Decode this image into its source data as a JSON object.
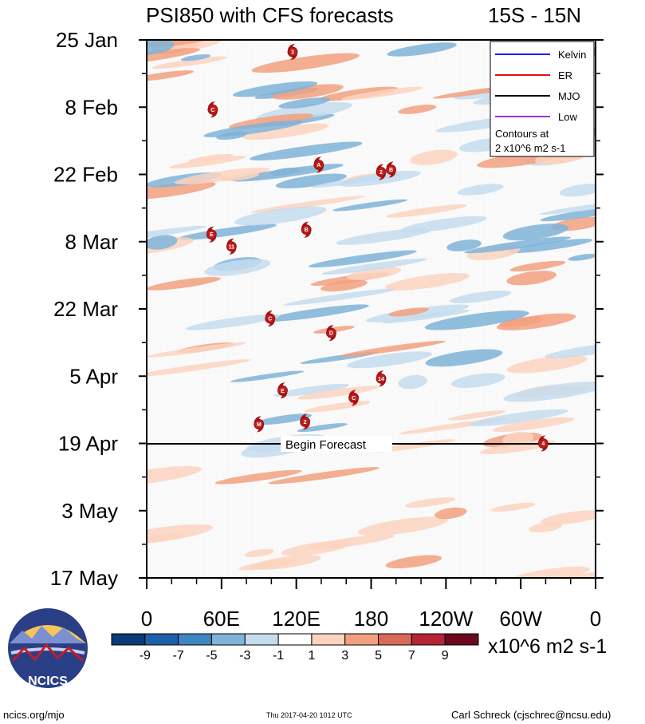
{
  "header": {
    "title": "PSI850 with CFS forecasts",
    "region": "15S - 15N"
  },
  "legend": {
    "items": [
      {
        "label": "Kelvin",
        "color": "#1a1aff"
      },
      {
        "label": "ER",
        "color": "#e01010"
      },
      {
        "label": "MJO",
        "color": "#000000"
      },
      {
        "label": "Low",
        "color": "#9a33cc"
      }
    ],
    "contours_line1": "Contours at",
    "contours_line2": "2 x10^6 m2 s-1"
  },
  "forecast_label": "Begin Forecast",
  "colorbar": {
    "colors": [
      "#0b3a78",
      "#1f5fa8",
      "#3d86c2",
      "#7fb3d8",
      "#c4dcee",
      "#ffffff",
      "#fcd3bf",
      "#f2a07f",
      "#d86a5a",
      "#b42535",
      "#6b0a1e"
    ],
    "labels": [
      "-9",
      "-7",
      "-5",
      "-3",
      "-1",
      "1",
      "3",
      "5",
      "7",
      "9"
    ],
    "units": "x10^6 m2 s-1"
  },
  "logo": {
    "text": "NCICS"
  },
  "footer": {
    "url": "ncics.org/mjo",
    "timestamp": "Thu 2017-04-20 1012 UTC",
    "author": "Carl Schreck (cjschrec@ncsu.edu)"
  },
  "chart_data": {
    "type": "heatmap",
    "title": "PSI850 with CFS forecasts",
    "subtitle": "15S - 15N",
    "x_ticks": [
      "0",
      "60E",
      "120E",
      "180",
      "120W",
      "60W",
      "0"
    ],
    "x_range_deg": [
      0,
      360
    ],
    "y_ticks": [
      "25 Jan",
      "8 Feb",
      "22 Feb",
      "8 Mar",
      "22 Mar",
      "5 Apr",
      "19 Apr",
      "3 May",
      "17 May"
    ],
    "y_range_days_from_25Jan": [
      0,
      112
    ],
    "forecast_start": "19 Apr",
    "contour_levels": [
      -9,
      -7,
      -5,
      -3,
      -1,
      1,
      3,
      5,
      7,
      9
    ],
    "storms": [
      {
        "label": "3",
        "lon": 117,
        "day": 2.5
      },
      {
        "label": "C",
        "lon": 53,
        "day": 14.5
      },
      {
        "label": "A",
        "lon": 138,
        "day": 26
      },
      {
        "label": "2",
        "lon": 188,
        "day": 27.5
      },
      {
        "label": "B",
        "lon": 196,
        "day": 27
      },
      {
        "label": "E",
        "lon": 52,
        "day": 40.5
      },
      {
        "label": "B",
        "lon": 128,
        "day": 39.5
      },
      {
        "label": "11",
        "lon": 68,
        "day": 43
      },
      {
        "label": "C",
        "lon": 99,
        "day": 58
      },
      {
        "label": "D",
        "lon": 148,
        "day": 61
      },
      {
        "label": "14",
        "lon": 188,
        "day": 70.5
      },
      {
        "label": "E",
        "lon": 109,
        "day": 73
      },
      {
        "label": "C",
        "lon": 166,
        "day": 74.5
      },
      {
        "label": "2",
        "lon": 127,
        "day": 79.5
      },
      {
        "label": "M",
        "lon": 90,
        "day": 80
      },
      {
        "label": "4",
        "lon": 318,
        "day": 84
      }
    ]
  }
}
